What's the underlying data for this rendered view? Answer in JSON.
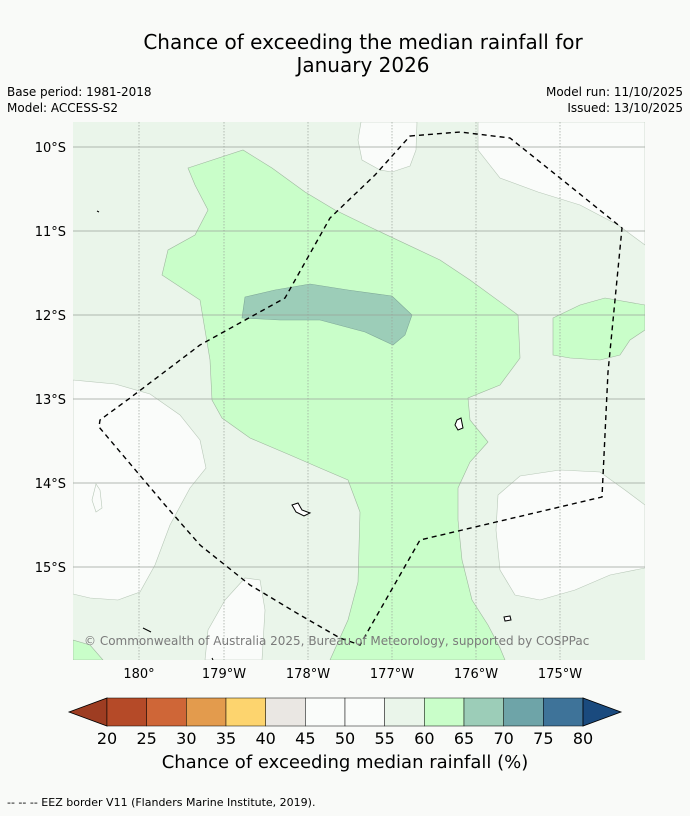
{
  "title_line1": "Chance of exceeding the median rainfall for",
  "title_line2": "January 2026",
  "base_period": "Base period: 1981-2018",
  "model": "Model: ACCESS-S2",
  "model_run": "Model run: 11/10/2025",
  "issued": "Issued: 13/10/2025",
  "lat_labels": [
    "10°S",
    "11°S",
    "12°S",
    "13°S",
    "14°S",
    "15°S"
  ],
  "lon_labels": [
    "180°",
    "179°W",
    "178°W",
    "177°W",
    "176°W",
    "175°W"
  ],
  "copyright": "© Commonwealth of Australia 2025, Bureau of Meteorology, supported by COSPPac",
  "colorbar": {
    "ticks": [
      "20",
      "25",
      "30",
      "35",
      "40",
      "45",
      "50",
      "55",
      "60",
      "65",
      "70",
      "75",
      "80"
    ],
    "colors": [
      "#9e3d22",
      "#b54a28",
      "#cf6637",
      "#e39b4d",
      "#fdd46e",
      "#eae7e3",
      "#fafcfa",
      "#fafcfa",
      "#eaf5ea",
      "#c9fec9",
      "#9ccdb8",
      "#6ea4a8",
      "#3e7399",
      "#1a4a7e"
    ],
    "label": "Chance of exceeding median rainfall (%)"
  },
  "footnote": "--  --  -- EEZ border V11 (Flanders Marine Institute, 2019).",
  "colors": {
    "background": "#f9faf8",
    "band_55_60": "#eaf5ea",
    "band_60_65": "#c9fec9",
    "band_65_70": "#9ccdb8",
    "band_50_55": "#fafcfa"
  }
}
